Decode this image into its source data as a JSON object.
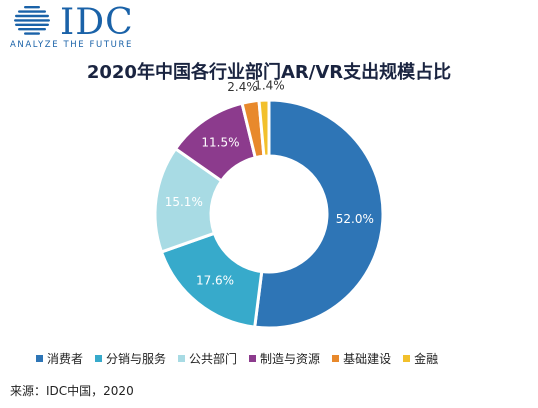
{
  "logo": {
    "name": "IDC",
    "tagline": "ANALYZE THE FUTURE",
    "color": "#1a62a8"
  },
  "chart_data": {
    "type": "pie",
    "style": "donut",
    "title": "2020年中国各行业部门AR/VR支出规模占比",
    "categories": [
      "消费者",
      "分销与服务",
      "公共部门",
      "制造与资源",
      "基础建设",
      "金融"
    ],
    "values": [
      52.0,
      17.6,
      15.1,
      11.5,
      2.4,
      1.4
    ],
    "labels": [
      "52.0%",
      "17.6%",
      "15.1%",
      "11.5%",
      "2.4%",
      "1.4%"
    ],
    "colors": [
      "#2e75b6",
      "#37aacb",
      "#a8dbe4",
      "#8c3b8d",
      "#e8892c",
      "#f2c02c"
    ],
    "legend_position": "bottom"
  },
  "source": "来源：IDC中国，2020"
}
